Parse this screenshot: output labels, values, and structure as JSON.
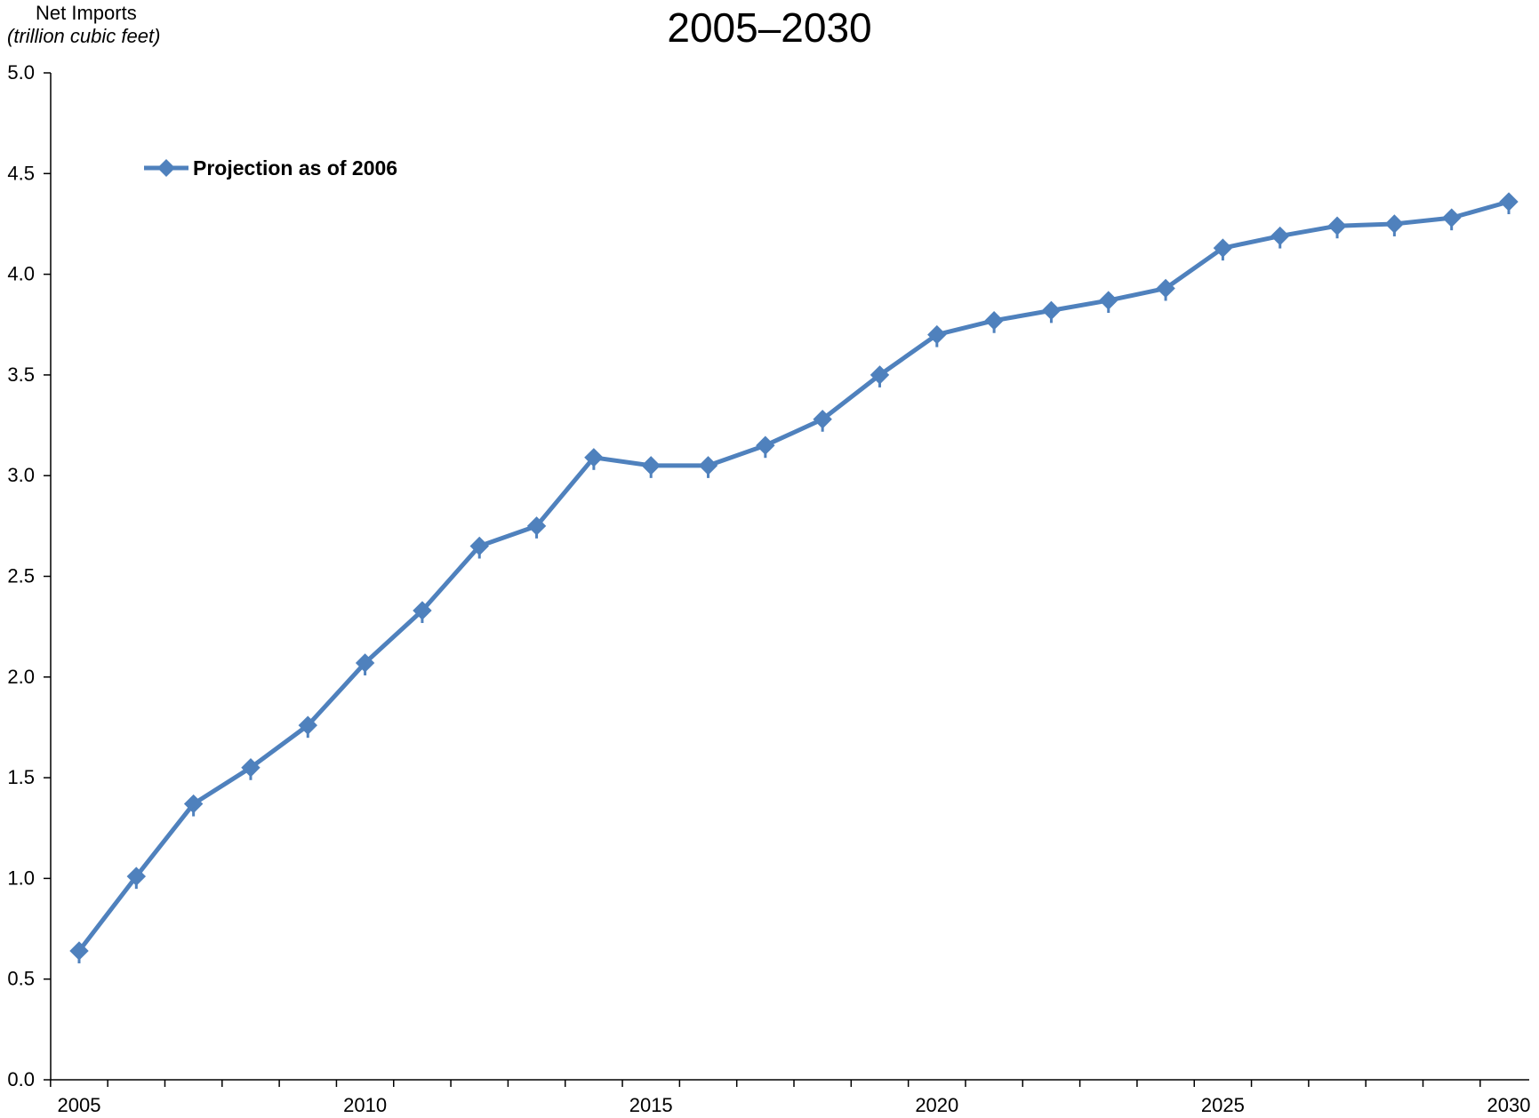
{
  "chart_data": {
    "type": "line",
    "title": "2005–2030",
    "ylabel_line1": "Net Imports",
    "ylabel_line2": "(trillion cubic feet)",
    "xlabel": "",
    "x": [
      2005,
      2006,
      2007,
      2008,
      2009,
      2010,
      2011,
      2012,
      2013,
      2014,
      2015,
      2016,
      2017,
      2018,
      2019,
      2020,
      2021,
      2022,
      2023,
      2024,
      2025,
      2026,
      2027,
      2028,
      2029,
      2030
    ],
    "series": [
      {
        "name": "Projection as of 2006",
        "color": "#4F81BD",
        "marker": "diamond",
        "values": [
          0.64,
          1.01,
          1.37,
          1.55,
          1.76,
          2.07,
          2.33,
          2.65,
          2.75,
          3.09,
          3.05,
          3.05,
          3.15,
          3.28,
          3.5,
          3.7,
          3.77,
          3.82,
          3.87,
          3.93,
          4.13,
          4.19,
          4.24,
          4.25,
          4.28,
          4.36
        ]
      }
    ],
    "ylim": [
      0,
      5
    ],
    "yticks": [
      "0.0",
      "0.5",
      "1.0",
      "1.5",
      "2.0",
      "2.5",
      "3.0",
      "3.5",
      "4.0",
      "4.5",
      "5.0"
    ],
    "xticks": [
      "2005",
      "2010",
      "2015",
      "2020",
      "2025",
      "2030"
    ],
    "grid": false,
    "legend_position": "top-left"
  }
}
